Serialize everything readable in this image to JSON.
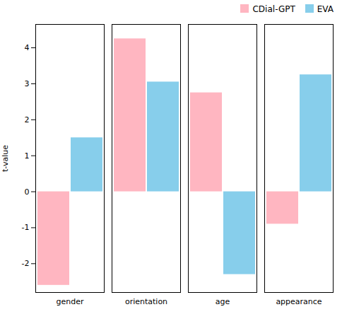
{
  "chart_data": {
    "type": "bar",
    "categories": [
      "gender",
      "orientation",
      "age",
      "appearance"
    ],
    "series": [
      {
        "name": "CDial-GPT",
        "color": "#ffb6c1",
        "values": [
          -2.6,
          4.25,
          2.75,
          -0.9
        ]
      },
      {
        "name": "EVA",
        "color": "#87ceeb",
        "values": [
          1.5,
          3.05,
          -2.3,
          3.25
        ]
      }
    ],
    "ylabel": "t-value",
    "ylim": [
      -2.8,
      4.65
    ],
    "yticks": [
      -2,
      -1,
      0,
      1,
      2,
      3,
      4
    ],
    "legend": "upper right",
    "grid": false
  }
}
